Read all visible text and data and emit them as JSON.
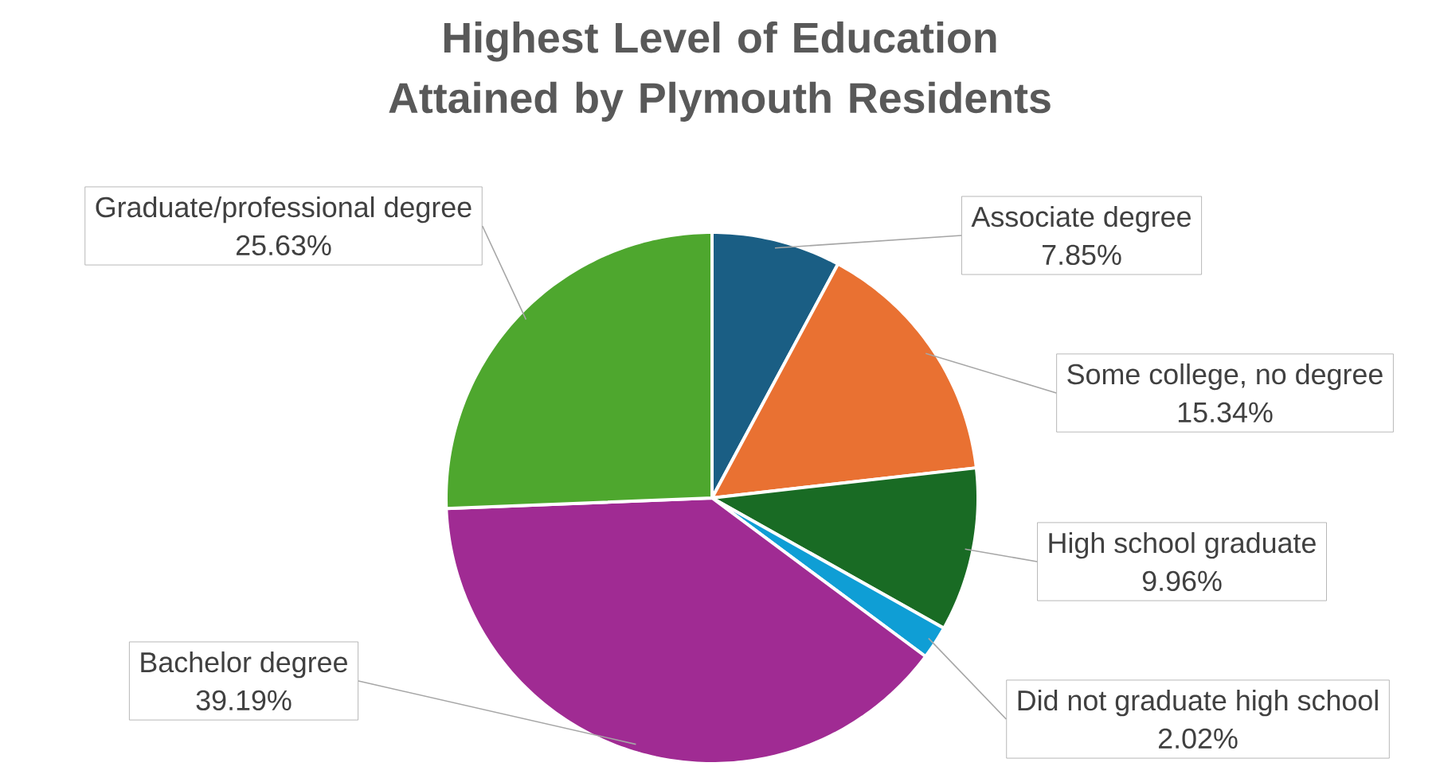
{
  "chart_data": {
    "type": "pie",
    "title": "Highest Level of Education Attained by Plymouth Residents",
    "categories": [
      "Associate degree",
      "Some college, no degree",
      "High school graduate",
      "Did not graduate high school",
      "Bachelor degree",
      "Graduate/professional degree"
    ],
    "values": [
      7.85,
      15.34,
      9.96,
      2.02,
      39.19,
      25.63
    ],
    "value_labels": [
      "7.85%",
      "15.34%",
      "9.96%",
      "2.02%",
      "39.19%",
      "25.63%"
    ],
    "colors": [
      "#1a5e84",
      "#e97132",
      "#196b24",
      "#0f9ed5",
      "#a02b93",
      "#4ea72e"
    ]
  }
}
